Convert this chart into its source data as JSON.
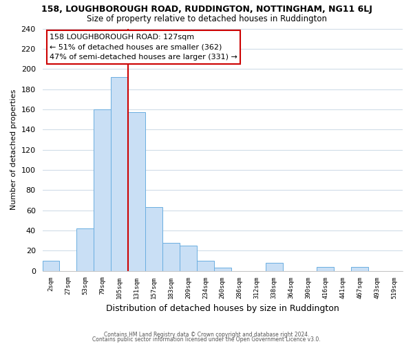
{
  "title_line1": "158, LOUGHBOROUGH ROAD, RUDDINGTON, NOTTINGHAM, NG11 6LJ",
  "title_line2": "Size of property relative to detached houses in Ruddington",
  "xlabel": "Distribution of detached houses by size in Ruddington",
  "ylabel": "Number of detached properties",
  "bar_labels": [
    "2sqm",
    "27sqm",
    "53sqm",
    "79sqm",
    "105sqm",
    "131sqm",
    "157sqm",
    "183sqm",
    "209sqm",
    "234sqm",
    "260sqm",
    "286sqm",
    "312sqm",
    "338sqm",
    "364sqm",
    "390sqm",
    "416sqm",
    "441sqm",
    "467sqm",
    "493sqm",
    "519sqm"
  ],
  "bar_heights": [
    10,
    0,
    42,
    160,
    192,
    157,
    63,
    28,
    25,
    10,
    3,
    0,
    0,
    8,
    0,
    0,
    4,
    0,
    4,
    0,
    0
  ],
  "bar_color": "#c9dff5",
  "bar_edge_color": "#6aaee0",
  "vline_color": "#cc0000",
  "annotation_title": "158 LOUGHBOROUGH ROAD: 127sqm",
  "annotation_line1": "← 51% of detached houses are smaller (362)",
  "annotation_line2": "47% of semi-detached houses are larger (331) →",
  "annotation_box_color": "white",
  "annotation_box_edge": "#cc0000",
  "ylim": [
    0,
    240
  ],
  "yticks": [
    0,
    20,
    40,
    60,
    80,
    100,
    120,
    140,
    160,
    180,
    200,
    220,
    240
  ],
  "footer_line1": "Contains HM Land Registry data © Crown copyright and database right 2024.",
  "footer_line2": "Contains public sector information licensed under the Open Government Licence v3.0.",
  "bg_color": "#ffffff",
  "grid_color": "#d0dce8",
  "vline_x_index": 5
}
